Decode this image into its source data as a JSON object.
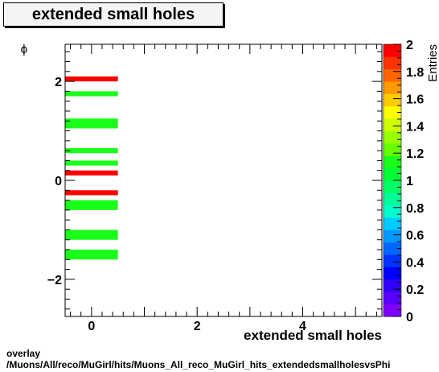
{
  "chart_data": {
    "type": "heatmap",
    "title": "extended small holes",
    "xlabel": "extended small holes",
    "ylabel": "ϕ",
    "zlabel": "Entries",
    "xlim": [
      -0.5,
      5.5
    ],
    "ylim": [
      -2.75,
      2.75
    ],
    "zlim": [
      0,
      2
    ],
    "x_ticks": [
      0,
      2,
      4
    ],
    "y_ticks": [
      -2,
      0,
      2
    ],
    "z_ticks": [
      "0",
      "0.2",
      "0.4",
      "0.6",
      "0.8",
      "1",
      "1.2",
      "1.4",
      "1.6",
      "1.8",
      "2"
    ],
    "cells": [
      {
        "x0": -0.5,
        "x1": 0.5,
        "y0": 2.0,
        "y1": 2.1,
        "value": 2
      },
      {
        "x0": -0.5,
        "x1": 0.5,
        "y0": 1.7,
        "y1": 1.8,
        "value": 1
      },
      {
        "x0": -0.5,
        "x1": 0.5,
        "y0": 1.05,
        "y1": 1.25,
        "value": 1
      },
      {
        "x0": -0.5,
        "x1": 0.5,
        "y0": 0.55,
        "y1": 0.65,
        "value": 1
      },
      {
        "x0": -0.5,
        "x1": 0.5,
        "y0": 0.3,
        "y1": 0.4,
        "value": 1
      },
      {
        "x0": -0.5,
        "x1": 0.5,
        "y0": 0.1,
        "y1": 0.2,
        "value": 2
      },
      {
        "x0": -0.5,
        "x1": 0.5,
        "y0": -0.3,
        "y1": -0.2,
        "value": 2
      },
      {
        "x0": -0.5,
        "x1": 0.5,
        "y0": -0.6,
        "y1": -0.4,
        "value": 1
      },
      {
        "x0": -0.5,
        "x1": 0.5,
        "y0": -1.2,
        "y1": -1.0,
        "value": 1
      },
      {
        "x0": -0.5,
        "x1": 0.5,
        "y0": -1.6,
        "y1": -1.4,
        "value": 1
      }
    ],
    "colors": {
      "value_1": "#19ff19",
      "value_2": "#ff0000"
    },
    "palette": [
      "#7f00ff",
      "#5a00ff",
      "#3300ff",
      "#0000ff",
      "#0033ff",
      "#0066ff",
      "#0099ff",
      "#00ccff",
      "#00ffcc",
      "#00ff99",
      "#00ff66",
      "#00ff33",
      "#19ff19",
      "#66ff00",
      "#99ff00",
      "#ccff00",
      "#ffff00",
      "#ffcc00",
      "#ff9900",
      "#ff6600",
      "#ff3300",
      "#ff0000"
    ]
  },
  "footer": {
    "line1": "overlay",
    "line2": "/Muons/All/reco/MuGirl/hits/Muons_All_reco_MuGirl_hits_extendedsmallholesvsPhi"
  }
}
